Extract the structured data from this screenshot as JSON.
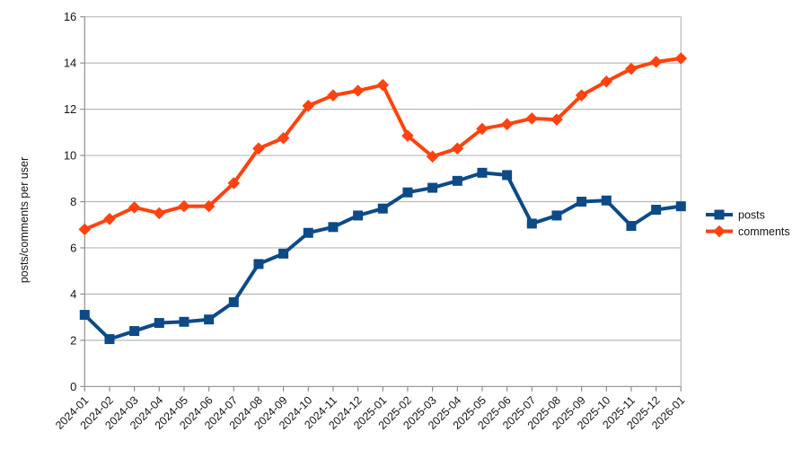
{
  "chart_data": {
    "type": "line",
    "title": "",
    "xlabel": "",
    "ylabel": "posts/comments per user",
    "ylim": [
      0,
      16
    ],
    "ytick_step": 2,
    "y_tick_labels": [
      "0",
      "2",
      "4",
      "6",
      "8",
      "10",
      "12",
      "14",
      "16"
    ],
    "grid": "horizontal",
    "legend_position": "right",
    "categories": [
      "2024-01",
      "2024-02",
      "2024-03",
      "2024-04",
      "2024-05",
      "2024-06",
      "2024-07",
      "2024-08",
      "2024-09",
      "2024-10",
      "2024-11",
      "2024-12",
      "2025-01",
      "2025-02",
      "2025-03",
      "2025-04",
      "2025-05",
      "2025-06",
      "2025-07",
      "2025-08",
      "2025-09",
      "2025-10",
      "2025-11",
      "2025-12",
      "2026-01"
    ],
    "series": [
      {
        "name": "posts",
        "marker": "square",
        "color": "#0d4a88",
        "values": [
          3.1,
          2.05,
          2.4,
          2.75,
          2.8,
          2.9,
          3.65,
          5.3,
          5.75,
          6.65,
          6.9,
          7.4,
          7.7,
          8.4,
          8.6,
          8.9,
          9.25,
          9.15,
          7.05,
          7.4,
          8.0,
          8.05,
          6.95,
          7.65,
          7.8
        ]
      },
      {
        "name": "comments",
        "marker": "diamond",
        "color": "#ff420e",
        "values": [
          6.8,
          7.25,
          7.75,
          7.5,
          7.8,
          7.8,
          8.8,
          10.3,
          10.75,
          12.15,
          12.6,
          12.8,
          13.05,
          10.85,
          9.95,
          10.3,
          11.15,
          11.35,
          11.6,
          11.55,
          12.6,
          13.2,
          13.75,
          14.05,
          14.2
        ]
      }
    ],
    "colors": {
      "grid": "#b8b8b8",
      "axis": "#8f8f8f",
      "text": "#141414",
      "background": "#ffffff"
    }
  }
}
